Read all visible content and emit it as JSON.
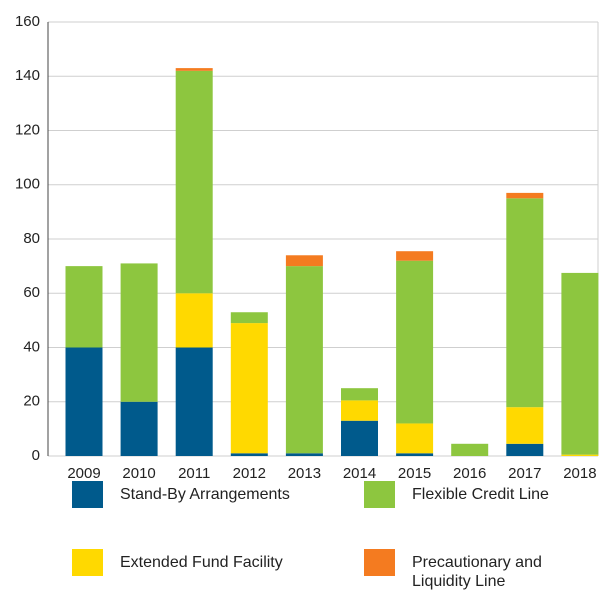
{
  "chart_data": {
    "type": "stacked_bar",
    "categories": [
      "2009",
      "2010",
      "2011",
      "2012",
      "2013",
      "2014",
      "2015",
      "2016",
      "2017",
      "2018"
    ],
    "series": [
      {
        "name": "Stand-By Arrangements",
        "color": "#005a8c",
        "values": [
          40,
          20,
          40,
          1,
          1,
          13,
          1,
          0,
          4.5,
          0
        ]
      },
      {
        "name": "Extended Fund Facility",
        "color": "#ffd900",
        "values": [
          0,
          0,
          20,
          48,
          0,
          7.5,
          11,
          0,
          13.5,
          0.5
        ]
      },
      {
        "name": "Flexible Credit Line",
        "color": "#8dc63f",
        "values": [
          30,
          51,
          82,
          4,
          69,
          4.5,
          60,
          4.5,
          77,
          67
        ]
      },
      {
        "name": "Precautionary and Liquidity Line",
        "color": "#f47b20",
        "values": [
          0,
          0,
          1,
          0,
          4,
          0,
          3.5,
          0,
          2,
          0
        ]
      }
    ],
    "ylim": [
      0,
      160
    ],
    "yticks": [
      0,
      20,
      40,
      60,
      80,
      100,
      120,
      140,
      160
    ],
    "grid": true
  }
}
